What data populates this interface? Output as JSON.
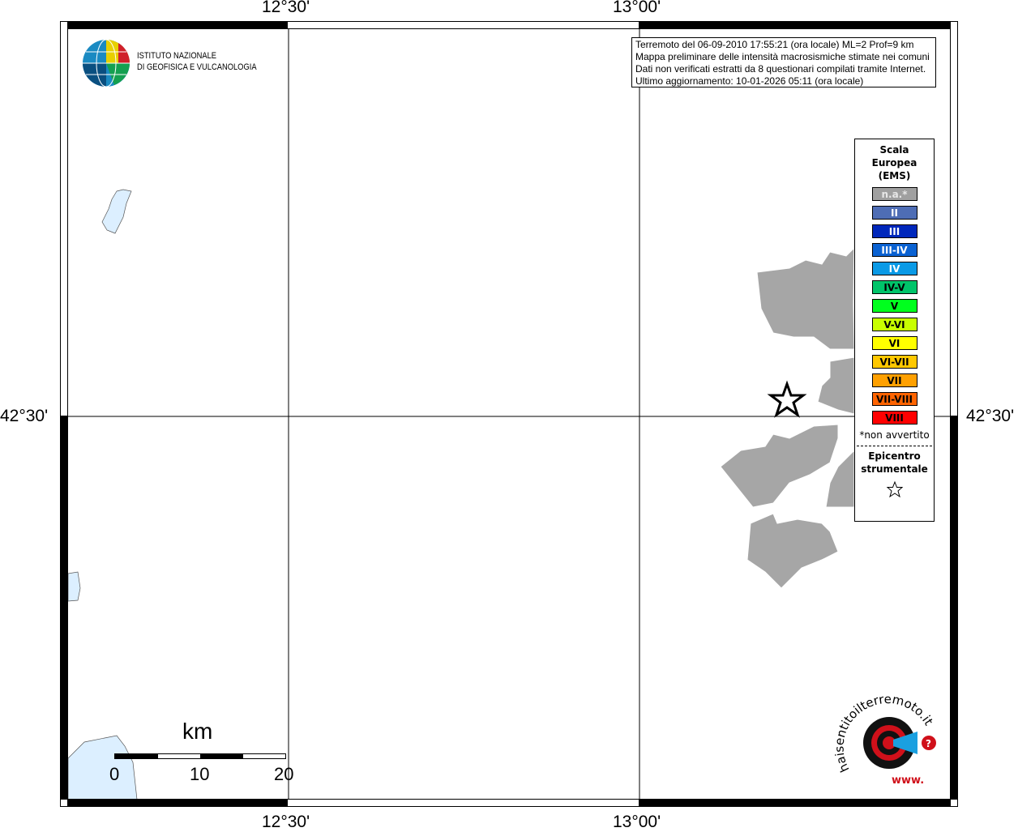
{
  "map": {
    "ticks_top": [
      "12°30'",
      "13°00'"
    ],
    "ticks_bottom": [
      "12°30'",
      "13°00'"
    ],
    "tick_left": "42°30'",
    "tick_right": "42°30'",
    "land_color": "#a6a6a6",
    "water_color": "#dcefff"
  },
  "logo": {
    "line1": "ISTITUTO NAZIONALE",
    "line2": "DI GEOFISICA E VULCANOLOGIA"
  },
  "info": {
    "line1": "Terremoto del 06-09-2010 17:55:21 (ora locale) ML=2 Prof=9 km",
    "line2": "Mappa preliminare delle intensità macrosismiche stimate nei comuni",
    "line3": "Dati non verificati estratti da 8 questionari compilati tramite Internet.",
    "line4": "Ultimo aggiornamento: 10-01-2026 05:11 (ora locale)"
  },
  "legend": {
    "title1": "Scala",
    "title2": "Europea",
    "title3": "(EMS)",
    "items": [
      {
        "label": "n.a.*",
        "color": "#a0a0a0",
        "text": "#e8e8e8"
      },
      {
        "label": "II",
        "color": "#4e6db5",
        "text": "#ffffff"
      },
      {
        "label": "III",
        "color": "#0027bb",
        "text": "#ffffff"
      },
      {
        "label": "III-IV",
        "color": "#0a62d2",
        "text": "#ffffff"
      },
      {
        "label": "IV",
        "color": "#0a9ae6",
        "text": "#ffffff"
      },
      {
        "label": "IV-V",
        "color": "#00c46a",
        "text": "#000000"
      },
      {
        "label": "V",
        "color": "#00ff1e",
        "text": "#000000"
      },
      {
        "label": "V-VI",
        "color": "#c8ff00",
        "text": "#000000"
      },
      {
        "label": "VI",
        "color": "#ffff00",
        "text": "#000000"
      },
      {
        "label": "VI-VII",
        "color": "#ffc800",
        "text": "#000000"
      },
      {
        "label": "VII",
        "color": "#ffa000",
        "text": "#000000"
      },
      {
        "label": "VII-VIII",
        "color": "#ff6400",
        "text": "#000000"
      },
      {
        "label": "VIII",
        "color": "#ff0000",
        "text": "#000000"
      }
    ],
    "note": "*non avvertito",
    "epi1": "Epicentro",
    "epi2": "strumentale"
  },
  "scale": {
    "unit": "km",
    "labels": [
      "0",
      "10",
      "20"
    ]
  },
  "brand": {
    "text": "haisentitoilterremoto.it",
    "www": "www."
  }
}
